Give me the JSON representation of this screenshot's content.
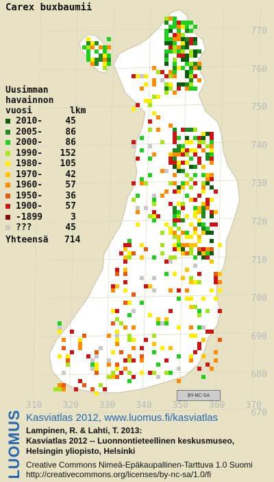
{
  "title": "Carex buxbaumii",
  "legend": {
    "header": [
      "Uusimman",
      "havainnon",
      "vuosi"
    ],
    "count_header": "lkm",
    "rows": [
      {
        "label": "2010-",
        "count": "45",
        "color": "#0d5a0d"
      },
      {
        "label": "2005-",
        "count": "86",
        "color": "#1e8a1e"
      },
      {
        "label": "2000-",
        "count": "86",
        "color": "#1fcf1f"
      },
      {
        "label": "1990-",
        "count": "152",
        "color": "#a5e61a"
      },
      {
        "label": "1980-",
        "count": "105",
        "color": "#ffee00"
      },
      {
        "label": "1970-",
        "count": "42",
        "color": "#ffc400"
      },
      {
        "label": "1960-",
        "count": "57",
        "color": "#ff8c00"
      },
      {
        "label": "1950-",
        "count": "36",
        "color": "#e85a10"
      },
      {
        "label": "1900-",
        "count": "57",
        "color": "#cc1414"
      },
      {
        "label": "-1899",
        "count": "3",
        "color": "#8a0a0a"
      },
      {
        "label": "???",
        "count": "45",
        "color": "#c8c8c8"
      }
    ],
    "total_label": "Yhteensä",
    "total_count": "714"
  },
  "axis": {
    "y_ticks": [
      "770",
      "760",
      "750",
      "740",
      "730",
      "720",
      "710",
      "700",
      "690",
      "680",
      "670"
    ],
    "x_ticks": [
      "310",
      "320",
      "330",
      "340",
      "350",
      "360",
      "370"
    ]
  },
  "badge": "BY-NC-SA",
  "brand": "LUOMUS",
  "credits": {
    "link": "Kasviatlas 2012, www.luomus.fi/kasviatlas",
    "lines": [
      "Lampinen, R. & Lahti, T. 2013:",
      "Kasviatlas 2012 -- Luonnontieteellinen keskusmuseo,",
      "Helsingin yliopisto, Helsinki"
    ],
    "license": [
      "Creative Commons Nimeä-Epäkaupallinen-Tarttuva 1.0 Suomi",
      "http://creativecommons.org/licenses/by-nc-sa/1.0/fi"
    ]
  }
}
